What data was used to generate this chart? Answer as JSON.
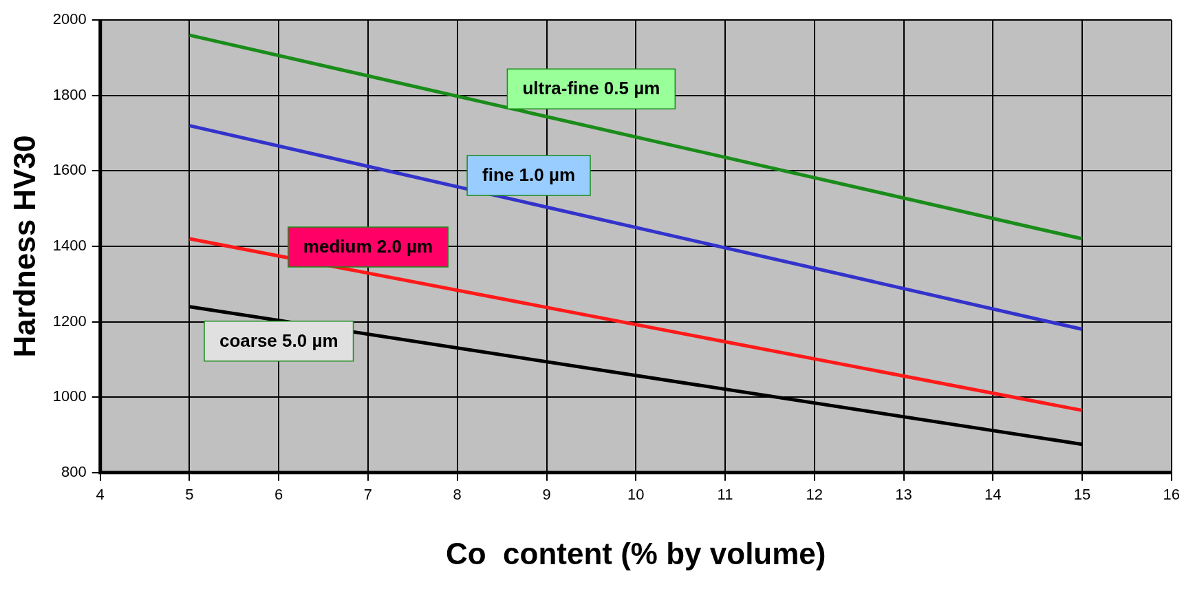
{
  "chart_data": {
    "type": "line",
    "xlabel": "Co  content (% by volume)",
    "ylabel": "Hardness HV30",
    "xlim": [
      4,
      16
    ],
    "xticks": [
      4,
      5,
      6,
      7,
      8,
      9,
      10,
      11,
      12,
      13,
      14,
      15,
      16
    ],
    "ylim": [
      800,
      2000
    ],
    "yticks": [
      800,
      1000,
      1200,
      1400,
      1600,
      1800,
      2000
    ],
    "x": [
      5,
      15
    ],
    "grid": true,
    "legend": false,
    "marker": "none",
    "line_style": "solid",
    "series": [
      {
        "name": "ultra-fine 0.5 µm",
        "color": "#1a8c1a",
        "values": [
          1960,
          1420
        ]
      },
      {
        "name": "fine 1.0 µm",
        "color": "#3333cc",
        "values": [
          1720,
          1180
        ]
      },
      {
        "name": "medium 2.0 µm",
        "color": "#ff1a1a",
        "values": [
          1420,
          965
        ]
      },
      {
        "name": "coarse 5.0 µm",
        "color": "#000000",
        "values": [
          1240,
          875
        ]
      }
    ]
  }
}
